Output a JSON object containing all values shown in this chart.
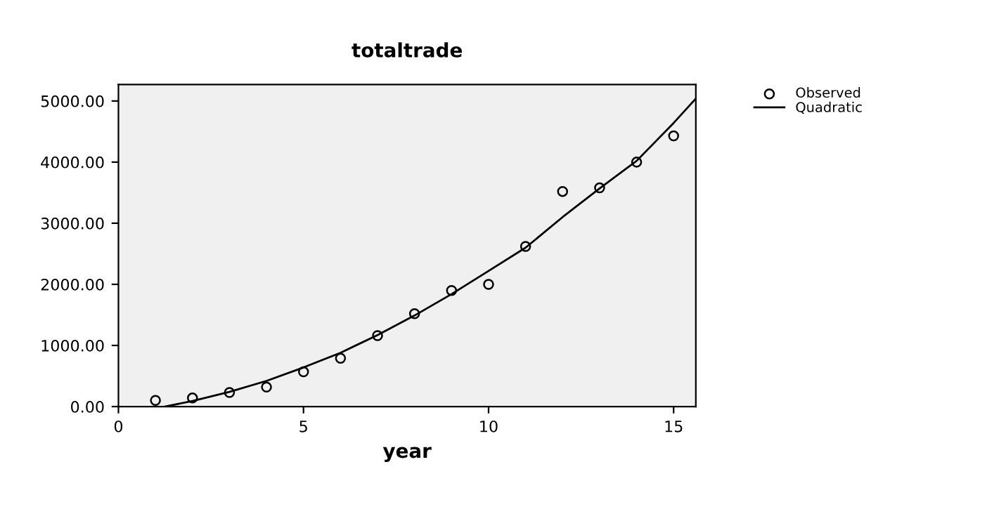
{
  "chart_data": {
    "type": "scatter",
    "title": "totaltrade",
    "xlabel": "year",
    "xlim": [
      0,
      15.6
    ],
    "ylim": [
      0,
      5270
    ],
    "xticks": [
      0,
      5,
      10,
      15
    ],
    "yticks": [
      {
        "value": 0,
        "label": "0.00"
      },
      {
        "value": 1000,
        "label": "1000.00"
      },
      {
        "value": 2000,
        "label": "2000.00"
      },
      {
        "value": 3000,
        "label": "3000.00"
      },
      {
        "value": 4000,
        "label": "4000.00"
      },
      {
        "value": 5000,
        "label": "5000.00"
      }
    ],
    "legend": "top right",
    "grid": false,
    "series": [
      {
        "name": "Observed",
        "marker": "circle",
        "color": "#000000",
        "x": [
          1,
          2,
          3,
          4,
          5,
          6,
          7,
          8,
          9,
          10,
          11,
          12,
          13,
          14,
          15
        ],
        "values": [
          100,
          140,
          230,
          320,
          570,
          790,
          1160,
          1520,
          1900,
          2000,
          2620,
          3520,
          3580,
          4000,
          4430
        ]
      },
      {
        "name": "Quadratic",
        "type": "line",
        "line_style": "solid",
        "color": "#000000",
        "x": [
          1.25,
          2,
          3,
          4,
          5,
          6,
          7,
          8,
          9,
          10,
          11,
          12,
          13,
          14,
          15,
          15.6
        ],
        "values": [
          0,
          90,
          240,
          420,
          640,
          880,
          1170,
          1490,
          1840,
          2220,
          2600,
          3100,
          3570,
          4020,
          4640,
          5040
        ]
      }
    ]
  }
}
